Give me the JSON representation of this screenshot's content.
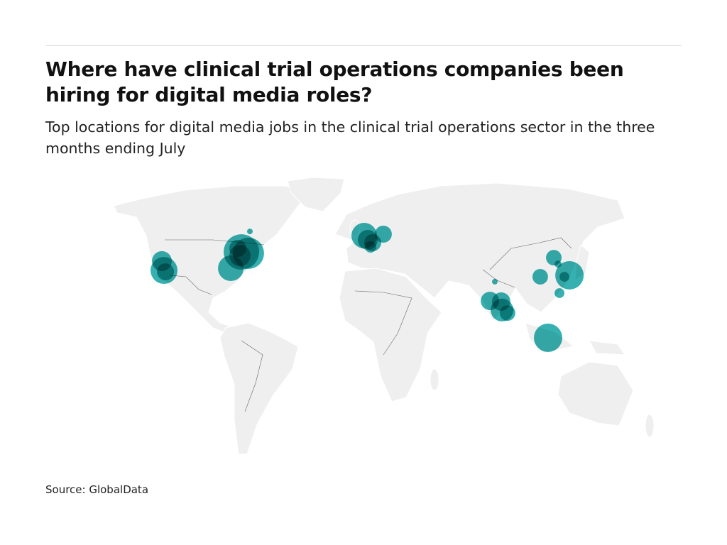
{
  "header": {
    "title": "Where have clinical trial operations companies been hiring for digital media roles?",
    "subtitle": "Top locations for digital media jobs in the clinical trial operations sector in the three months ending July"
  },
  "footer": {
    "source": "Source: GlobalData"
  },
  "chart_data": {
    "type": "bubble-map",
    "title": "Where have clinical trial operations companies been hiring for digital media roles?",
    "colors": {
      "bubble": "#1aa5a5",
      "land": "#efefef",
      "border": "#666666"
    },
    "points": [
      {
        "lon": -122.6,
        "lat": 40.9,
        "size": 49
      },
      {
        "lon": -121.3,
        "lat": 35.2,
        "size": 90
      },
      {
        "lon": -120.4,
        "lat": 34.3,
        "size": 36
      },
      {
        "lon": -73.9,
        "lat": 46.5,
        "size": 156
      },
      {
        "lon": -69.6,
        "lat": 45.7,
        "size": 121
      },
      {
        "lon": -80.4,
        "lat": 36.5,
        "size": 81
      },
      {
        "lon": -74.8,
        "lat": 44.3,
        "size": 56
      },
      {
        "lon": -68.7,
        "lat": 59.1,
        "size": 4
      },
      {
        "lon": -76.1,
        "lat": 48.7,
        "size": 36
      },
      {
        "lon": 1.3,
        "lat": 56.5,
        "size": 81
      },
      {
        "lon": 13.0,
        "lat": 57.4,
        "size": 36
      },
      {
        "lon": 3.5,
        "lat": 53.9,
        "size": 49
      },
      {
        "lon": 6.5,
        "lat": 52.2,
        "size": 36
      },
      {
        "lon": 5.2,
        "lat": 49.6,
        "size": 16
      },
      {
        "lon": 117.4,
        "lat": 43.0,
        "size": 30
      },
      {
        "lon": 120.0,
        "lat": 39.1,
        "size": 6
      },
      {
        "lon": 127.0,
        "lat": 32.2,
        "size": 100
      },
      {
        "lon": 123.9,
        "lat": 31.3,
        "size": 12
      },
      {
        "lon": 120.9,
        "lat": 21.3,
        "size": 12
      },
      {
        "lon": 109.1,
        "lat": 31.3,
        "size": 30
      },
      {
        "lon": 81.3,
        "lat": 28.3,
        "size": 4
      },
      {
        "lon": 78.3,
        "lat": 16.5,
        "size": 42
      },
      {
        "lon": 85.2,
        "lat": 16.1,
        "size": 42
      },
      {
        "lon": 89.1,
        "lat": 9.1,
        "size": 30
      },
      {
        "lon": 85.7,
        "lat": 10.9,
        "size": 64
      },
      {
        "lon": 113.9,
        "lat": -6.1,
        "size": 100
      }
    ]
  }
}
